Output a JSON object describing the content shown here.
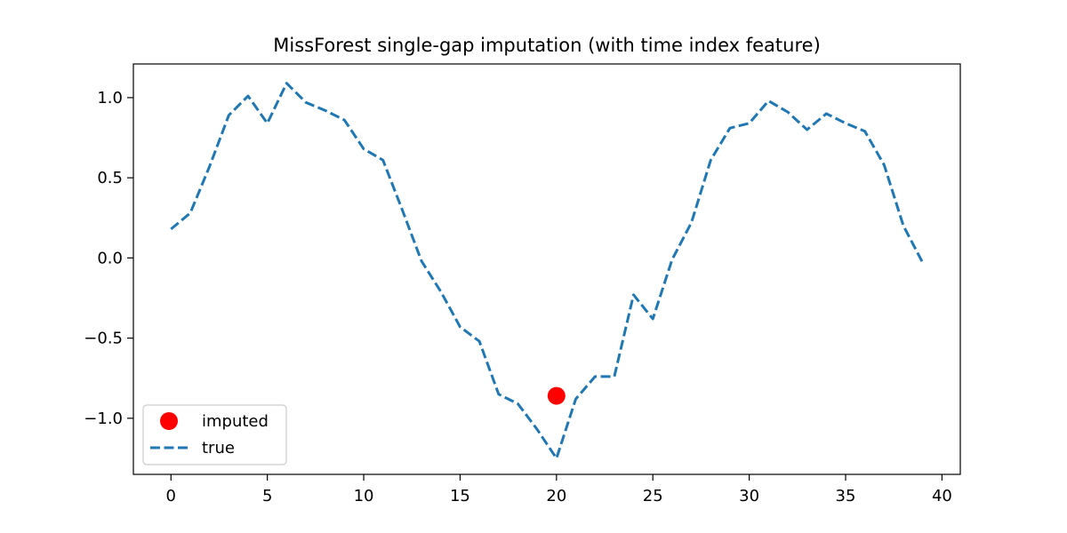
{
  "chart_data": {
    "type": "line",
    "title": "MissForest single-gap imputation (with time index feature)",
    "xlabel": "",
    "ylabel": "",
    "xlim": [
      -1.95,
      40.95
    ],
    "ylim": [
      -1.35,
      1.21
    ],
    "x_ticks": [
      0,
      5,
      10,
      15,
      20,
      25,
      30,
      35,
      40
    ],
    "y_ticks": [
      1.0,
      0.5,
      0.0,
      -0.5,
      -1.0
    ],
    "x_tick_labels": [
      "0",
      "5",
      "10",
      "15",
      "20",
      "25",
      "30",
      "35",
      "40"
    ],
    "y_tick_labels": [
      "1.0",
      "0.5",
      "0.0",
      "−0.5",
      "−1.0"
    ],
    "grid": false,
    "legend_position": "lower-left",
    "series": [
      {
        "name": "true",
        "style": "dashed-line",
        "color": "#1f77b4",
        "x": [
          0,
          1,
          2,
          3,
          4,
          5,
          6,
          7,
          8,
          9,
          10,
          11,
          12,
          13,
          14,
          15,
          16,
          17,
          18,
          19,
          20,
          21,
          22,
          23,
          24,
          25,
          26,
          27,
          28,
          29,
          30,
          31,
          32,
          33,
          34,
          35,
          36,
          37,
          38,
          39
        ],
        "y": [
          0.18,
          0.28,
          0.57,
          0.89,
          1.01,
          0.84,
          1.09,
          0.97,
          0.92,
          0.86,
          0.68,
          0.61,
          0.3,
          -0.02,
          -0.21,
          -0.43,
          -0.52,
          -0.85,
          -0.91,
          -1.07,
          -1.25,
          -0.88,
          -0.74,
          -0.74,
          -0.23,
          -0.38,
          -0.01,
          0.22,
          0.61,
          0.81,
          0.84,
          0.98,
          0.91,
          0.8,
          0.9,
          0.84,
          0.79,
          0.58,
          0.2,
          -0.03
        ]
      },
      {
        "name": "imputed",
        "style": "marker",
        "color": "#ff0000",
        "x": [
          20
        ],
        "y": [
          -0.86
        ]
      }
    ]
  }
}
